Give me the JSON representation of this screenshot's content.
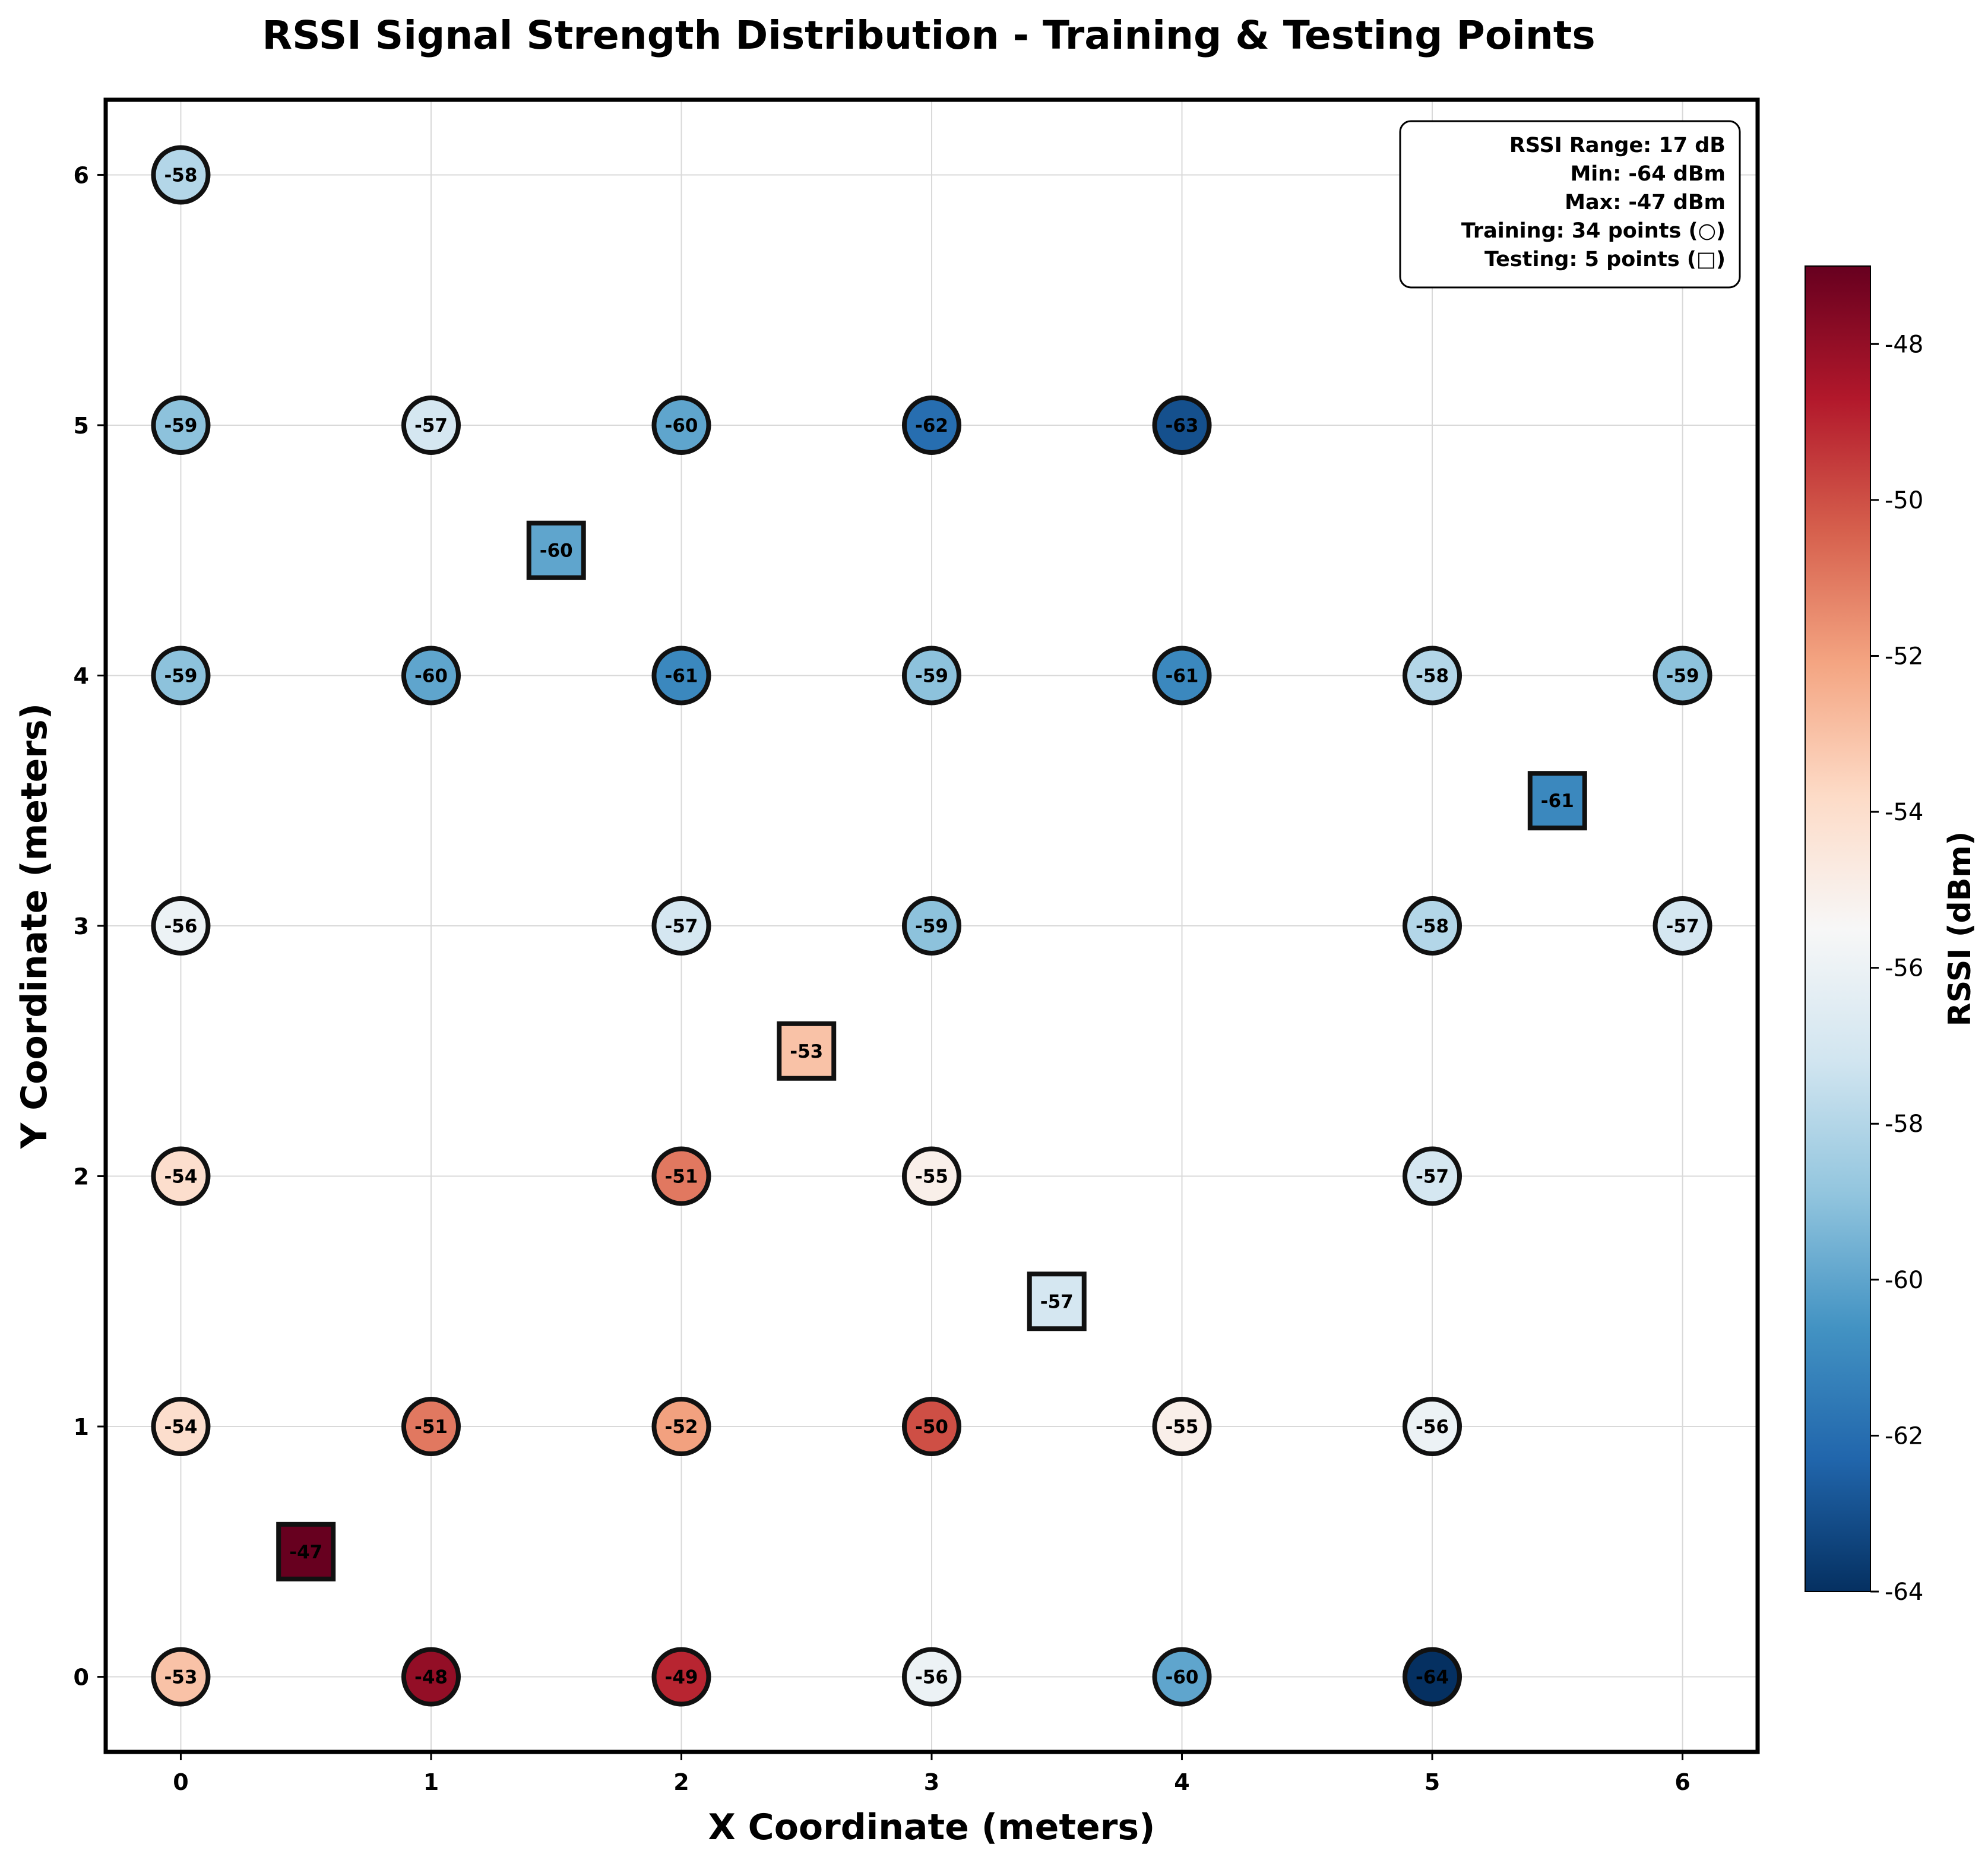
{
  "chart_data": {
    "type": "scatter",
    "title": "RSSI Signal Strength Distribution - Training & Testing Points",
    "xlabel": "X Coordinate (meters)",
    "ylabel": "Y Coordinate (meters)",
    "xlim": [
      -0.3,
      6.3
    ],
    "ylim": [
      -0.3,
      6.3
    ],
    "xticks": [
      "0",
      "1",
      "2",
      "3",
      "4",
      "5",
      "6"
    ],
    "yticks": [
      "0",
      "1",
      "2",
      "3",
      "4",
      "5",
      "6"
    ],
    "grid": true,
    "colormap": "RdBu_r",
    "colorbar": {
      "label": "RSSI (dBm)",
      "range": [
        -64,
        -47
      ],
      "ticks": [
        "-48",
        "-50",
        "-52",
        "-54",
        "-56",
        "-58",
        "-60",
        "-62",
        "-64"
      ]
    },
    "info_box": {
      "placement": "top-right",
      "lines": [
        "RSSI Range: 17 dB",
        "Min: -64 dBm",
        "Max: -47 dBm",
        "Training: 34 points (○)",
        "Testing: 5 points (□)"
      ]
    },
    "series": [
      {
        "marker": "circle",
        "points": [
          {
            "x": 0,
            "y": 6,
            "rssi": -58
          },
          {
            "x": 0,
            "y": 5,
            "rssi": -59
          },
          {
            "x": 1,
            "y": 5,
            "rssi": -57
          },
          {
            "x": 2,
            "y": 5,
            "rssi": -60
          },
          {
            "x": 3,
            "y": 5,
            "rssi": -62
          },
          {
            "x": 4,
            "y": 5,
            "rssi": -63
          },
          {
            "x": 0,
            "y": 4,
            "rssi": -59
          },
          {
            "x": 1,
            "y": 4,
            "rssi": -60
          },
          {
            "x": 2,
            "y": 4,
            "rssi": -61
          },
          {
            "x": 3,
            "y": 4,
            "rssi": -59
          },
          {
            "x": 4,
            "y": 4,
            "rssi": -61
          },
          {
            "x": 5,
            "y": 4,
            "rssi": -58
          },
          {
            "x": 6,
            "y": 4,
            "rssi": -59
          },
          {
            "x": 0,
            "y": 3,
            "rssi": -56
          },
          {
            "x": 2,
            "y": 3,
            "rssi": -57
          },
          {
            "x": 3,
            "y": 3,
            "rssi": -59
          },
          {
            "x": 5,
            "y": 3,
            "rssi": -58
          },
          {
            "x": 6,
            "y": 3,
            "rssi": -57
          },
          {
            "x": 0,
            "y": 2,
            "rssi": -54
          },
          {
            "x": 2,
            "y": 2,
            "rssi": -51
          },
          {
            "x": 3,
            "y": 2,
            "rssi": -55
          },
          {
            "x": 5,
            "y": 2,
            "rssi": -57
          },
          {
            "x": 0,
            "y": 1,
            "rssi": -54
          },
          {
            "x": 1,
            "y": 1,
            "rssi": -51
          },
          {
            "x": 2,
            "y": 1,
            "rssi": -52
          },
          {
            "x": 3,
            "y": 1,
            "rssi": -50
          },
          {
            "x": 4,
            "y": 1,
            "rssi": -55
          },
          {
            "x": 5,
            "y": 1,
            "rssi": -56
          },
          {
            "x": 0,
            "y": 0,
            "rssi": -53
          },
          {
            "x": 1,
            "y": 0,
            "rssi": -48
          },
          {
            "x": 2,
            "y": 0,
            "rssi": -49
          },
          {
            "x": 3,
            "y": 0,
            "rssi": -56
          },
          {
            "x": 4,
            "y": 0,
            "rssi": -60
          },
          {
            "x": 5,
            "y": 0,
            "rssi": -64
          }
        ]
      },
      {
        "marker": "square",
        "points": [
          {
            "x": 1.5,
            "y": 4.5,
            "rssi": -60
          },
          {
            "x": 5.5,
            "y": 3.5,
            "rssi": -61
          },
          {
            "x": 2.5,
            "y": 2.5,
            "rssi": -53
          },
          {
            "x": 3.5,
            "y": 1.5,
            "rssi": -57
          },
          {
            "x": 0.5,
            "y": 0.5,
            "rssi": -47
          }
        ]
      }
    ]
  }
}
